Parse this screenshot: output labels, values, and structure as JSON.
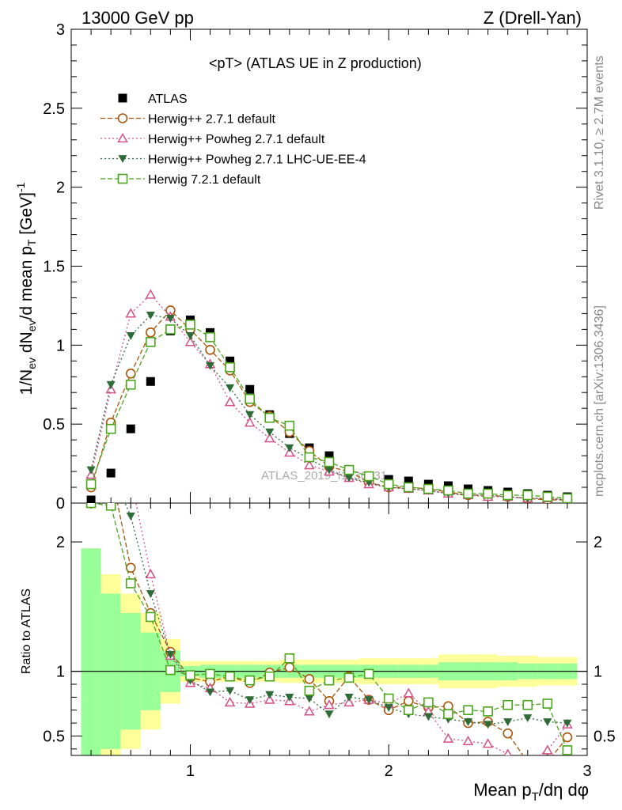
{
  "header": {
    "left": "13000 GeV pp",
    "right": "Z (Drell-Yan)"
  },
  "plot_title": "<pT> (ATLAS UE in Z production)",
  "side_labels": {
    "rivet": "Rivet 3.1.10, ≥ 2.7M events",
    "mcplots": "mcplots.cern.ch [arXiv:1306.3436]"
  },
  "watermark": "ATLAS_2019_I1736531",
  "axes": {
    "ylabel_main": "1/N_ev dN_ev/d mean p_T [GeV]^-1",
    "ylabel_ratio": "Ratio to ATLAS",
    "xlabel": "Mean p_T/dη dφ"
  },
  "colors": {
    "atlas": "#000000",
    "herwig271": "#a8550a",
    "powheg": "#d64f8a",
    "powheg_ee4": "#2e6b37",
    "herwig721": "#4aa51b",
    "band_inner": "#99ff99",
    "band_outer": "#ffff99"
  },
  "chart_data": {
    "type": "scatter",
    "x": [
      0.5,
      0.6,
      0.7,
      0.8,
      0.9,
      1.0,
      1.1,
      1.2,
      1.3,
      1.4,
      1.5,
      1.6,
      1.7,
      1.8,
      1.9,
      2.0,
      2.1,
      2.2,
      2.3,
      2.4,
      2.5,
      2.6,
      2.7,
      2.8,
      2.9
    ],
    "xlim": [
      0.4,
      3.0
    ],
    "ylim_main": [
      0,
      3
    ],
    "ylim_ratio": [
      0.35,
      2.3
    ],
    "xticks": [
      "1",
      "2",
      "3"
    ],
    "yticks_main": [
      "0",
      "0.5",
      "1",
      "1.5",
      "2",
      "2.5",
      "3"
    ],
    "yticks_ratio": [
      "0.5",
      "1",
      "2"
    ],
    "legend_position": "top-left",
    "series": [
      {
        "name": "ATLAS",
        "marker": "square-filled",
        "color": "#000000",
        "values": [
          0.02,
          0.19,
          0.47,
          0.77,
          1.09,
          1.16,
          1.08,
          0.9,
          0.72,
          0.56,
          0.44,
          0.35,
          0.3,
          0.21,
          0.17,
          0.15,
          0.14,
          0.12,
          0.11,
          0.09,
          0.08,
          0.07,
          0.06,
          0.05,
          0.04
        ],
        "ratio": [
          1,
          1,
          1,
          1,
          1,
          1,
          1,
          1,
          1,
          1,
          1,
          1,
          1,
          1,
          1,
          1,
          1,
          1,
          1,
          1,
          1,
          1,
          1,
          1,
          1
        ]
      },
      {
        "name": "Herwig++ 2.7.1 default",
        "marker": "circle-open",
        "color": "#a8550a",
        "values": [
          0.1,
          0.51,
          0.82,
          1.08,
          1.22,
          1.1,
          0.97,
          0.84,
          0.64,
          0.55,
          0.45,
          0.33,
          0.23,
          0.2,
          0.13,
          0.1,
          0.1,
          0.09,
          0.07,
          0.05,
          0.05,
          0.04,
          0.03,
          0.02,
          0.02
        ],
        "ratio": [
          3.0,
          2.6,
          1.8,
          1.45,
          1.15,
          0.95,
          0.92,
          0.96,
          0.91,
          0.99,
          1.03,
          0.94,
          0.77,
          0.96,
          0.78,
          0.7,
          0.77,
          0.72,
          0.73,
          0.6,
          0.61,
          0.52,
          0.3,
          0.3,
          0.49
        ]
      },
      {
        "name": "Herwig++ Powheg 2.7.1 default",
        "marker": "triangle-up-open",
        "color": "#d64f8a",
        "values": [
          0.18,
          0.72,
          1.2,
          1.32,
          1.18,
          1.02,
          0.88,
          0.64,
          0.51,
          0.41,
          0.32,
          0.24,
          0.2,
          0.16,
          0.12,
          0.1,
          0.09,
          0.08,
          0.06,
          0.05,
          0.04,
          0.04,
          0.03,
          0.03,
          0.02
        ],
        "ratio": [
          3.0,
          3.0,
          2.5,
          1.75,
          1.12,
          0.91,
          0.87,
          0.76,
          0.75,
          0.78,
          0.77,
          0.69,
          0.74,
          0.76,
          0.78,
          0.75,
          0.83,
          0.69,
          0.48,
          0.46,
          0.44,
          0.36,
          0.3,
          0.39,
          0.59
        ]
      },
      {
        "name": "Herwig++ Powheg 2.7.1 LHC-UE-EE-4",
        "marker": "triangle-down-filled",
        "color": "#2e6b37",
        "values": [
          0.21,
          0.75,
          1.06,
          1.19,
          1.17,
          1.06,
          0.87,
          0.73,
          0.56,
          0.45,
          0.35,
          0.28,
          0.21,
          0.16,
          0.13,
          0.1,
          0.09,
          0.08,
          0.06,
          0.05,
          0.05,
          0.04,
          0.03,
          0.03,
          0.02
        ],
        "ratio": [
          3.0,
          2.7,
          2.2,
          1.6,
          1.13,
          0.93,
          0.84,
          0.85,
          0.78,
          0.82,
          0.8,
          0.79,
          0.67,
          0.8,
          0.78,
          0.72,
          0.67,
          0.65,
          0.63,
          0.61,
          0.59,
          0.61,
          0.64,
          0.61,
          0.6
        ]
      },
      {
        "name": "Herwig 7.2.1 default",
        "marker": "square-open",
        "color": "#4aa51b",
        "values": [
          0.12,
          0.47,
          0.75,
          1.02,
          1.1,
          1.13,
          1.05,
          0.86,
          0.66,
          0.54,
          0.49,
          0.29,
          0.26,
          0.21,
          0.17,
          0.12,
          0.1,
          0.09,
          0.08,
          0.06,
          0.06,
          0.05,
          0.05,
          0.04,
          0.03
        ],
        "ratio": [
          2.3,
          2.28,
          1.68,
          1.42,
          1.01,
          0.97,
          0.98,
          0.96,
          0.93,
          0.96,
          1.1,
          0.85,
          0.93,
          0.95,
          0.98,
          0.79,
          0.7,
          0.76,
          0.67,
          0.7,
          0.69,
          0.74,
          0.74,
          0.75,
          0.39
        ]
      }
    ],
    "ratio_band": {
      "edges": [
        0.45,
        0.55,
        0.65,
        0.75,
        0.85,
        0.95,
        1.05,
        1.15,
        1.25,
        1.35,
        1.45,
        1.55,
        1.65,
        1.75,
        1.85,
        1.95,
        2.05,
        2.15,
        2.25,
        2.35,
        2.45,
        2.55,
        2.65,
        2.75,
        2.85,
        2.95
      ],
      "inner": [
        0.95,
        0.6,
        0.45,
        0.3,
        0.16,
        0.04,
        0.05,
        0.05,
        0.05,
        0.05,
        0.05,
        0.05,
        0.05,
        0.05,
        0.05,
        0.05,
        0.05,
        0.05,
        0.07,
        0.07,
        0.07,
        0.07,
        0.06,
        0.06,
        0.06
      ],
      "outer": [
        0.95,
        0.75,
        0.6,
        0.45,
        0.25,
        0.08,
        0.08,
        0.08,
        0.08,
        0.08,
        0.09,
        0.09,
        0.09,
        0.09,
        0.1,
        0.1,
        0.1,
        0.1,
        0.13,
        0.13,
        0.13,
        0.12,
        0.12,
        0.11,
        0.11
      ]
    }
  }
}
